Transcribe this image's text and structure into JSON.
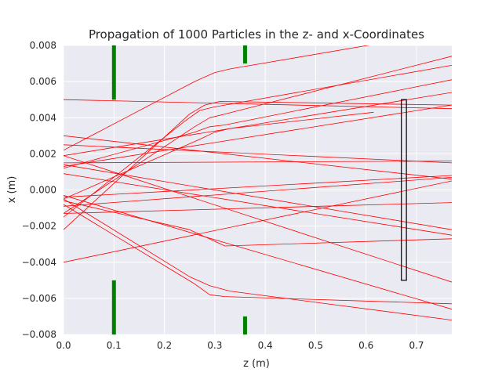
{
  "chart_data": {
    "type": "line",
    "title": "Propagation of 1000 Particles in the z- and x-Coordinates",
    "xlabel": "z (m)",
    "ylabel": "x (m)",
    "xlim": [
      0.0,
      0.77
    ],
    "ylim": [
      -0.008,
      0.008
    ],
    "xticks": [
      0.0,
      0.1,
      0.2,
      0.3,
      0.4,
      0.5,
      0.6,
      0.7
    ],
    "xtick_labels": [
      "0.0",
      "0.1",
      "0.2",
      "0.3",
      "0.4",
      "0.5",
      "0.6",
      "0.7"
    ],
    "yticks": [
      -0.008,
      -0.006,
      -0.004,
      -0.002,
      0.0,
      0.002,
      0.004,
      0.006,
      0.008
    ],
    "ytick_labels": [
      "−0.008",
      "−0.006",
      "−0.004",
      "−0.002",
      "0.000",
      "0.002",
      "0.004",
      "0.006",
      "0.008"
    ],
    "grid": true,
    "background_color": "#eaeaf2",
    "grid_color": "#ffffff",
    "trajectory_color": "#ff0000",
    "aperture_color": "#008000",
    "detector_color": "#000000",
    "apertures": [
      {
        "z": 0.1,
        "x_ranges": [
          [
            0.005,
            0.008
          ],
          [
            -0.008,
            -0.005
          ]
        ]
      },
      {
        "z": 0.36,
        "x_ranges": [
          [
            0.007,
            0.008
          ],
          [
            -0.008,
            -0.007
          ]
        ]
      }
    ],
    "detector": {
      "z_range": [
        0.67,
        0.68
      ],
      "x_range": [
        -0.005,
        0.005
      ]
    },
    "series": [
      {
        "z": [
          0.0,
          0.26,
          0.3,
          0.33,
          0.77
        ],
        "x": [
          0.0022,
          0.006,
          0.0065,
          0.0067,
          0.0088
        ]
      },
      {
        "z": [
          0.0,
          0.25,
          0.28,
          0.31,
          0.77
        ],
        "x": [
          -0.0022,
          0.0042,
          0.0047,
          0.0049,
          0.0047
        ]
      },
      {
        "z": [
          0.0,
          0.24,
          0.27,
          0.3,
          0.77
        ],
        "x": [
          -0.0015,
          0.0038,
          0.0044,
          0.0046,
          0.0069
        ]
      },
      {
        "z": [
          0.0,
          0.26,
          0.29,
          0.32,
          0.77
        ],
        "x": [
          -0.0013,
          0.0035,
          0.004,
          0.0042,
          0.0074
        ]
      },
      {
        "z": [
          0.0,
          0.27,
          0.3,
          0.33,
          0.615
        ],
        "x": [
          -0.0005,
          0.0028,
          0.0032,
          0.0034,
          0.0043
        ]
      },
      {
        "z": [
          0.0,
          0.26,
          0.29,
          0.32,
          0.77
        ],
        "x": [
          0.0012,
          0.0032,
          0.0035,
          0.0036,
          0.0061
        ]
      },
      {
        "z": [
          0.0,
          0.77
        ],
        "x": [
          0.005,
          0.0045
        ]
      },
      {
        "z": [
          0.0,
          0.77
        ],
        "x": [
          0.0013,
          0.0047
        ]
      },
      {
        "z": [
          0.0,
          0.77
        ],
        "x": [
          0.0019,
          0.0054
        ]
      },
      {
        "z": [
          0.0,
          0.77
        ],
        "x": [
          0.003,
          0.0006
        ]
      },
      {
        "z": [
          0.0,
          0.77
        ],
        "x": [
          0.0025,
          0.0015
        ]
      },
      {
        "z": [
          0.0,
          0.77
        ],
        "x": [
          0.0015,
          0.0016
        ]
      },
      {
        "z": [
          0.0,
          0.77
        ],
        "x": [
          -0.0004,
          0.0008
        ]
      },
      {
        "z": [
          0.0,
          0.77
        ],
        "x": [
          -0.0009,
          0.0007
        ]
      },
      {
        "z": [
          0.0,
          0.77
        ],
        "x": [
          -0.0013,
          -0.0007
        ]
      },
      {
        "z": [
          0.0,
          0.77
        ],
        "x": [
          0.0014,
          -0.0022
        ]
      },
      {
        "z": [
          0.0,
          0.77
        ],
        "x": [
          0.0009,
          -0.0025
        ]
      },
      {
        "z": [
          0.0,
          0.77
        ],
        "x": [
          -0.004,
          0.0005
        ]
      },
      {
        "z": [
          0.0,
          0.25,
          0.32,
          0.77
        ],
        "x": [
          -0.0006,
          -0.0022,
          -0.0031,
          -0.0027
        ]
      },
      {
        "z": [
          0.0,
          0.77
        ],
        "x": [
          0.0019,
          -0.0051
        ]
      },
      {
        "z": [
          0.0,
          0.25,
          0.29,
          0.33,
          0.77
        ],
        "x": [
          -0.0005,
          -0.0048,
          -0.0053,
          -0.0056,
          -0.0072
        ]
      },
      {
        "z": [
          0.0,
          0.26,
          0.29,
          0.32,
          0.77
        ],
        "x": [
          -0.0008,
          -0.0052,
          -0.0058,
          -0.0059,
          -0.0063
        ]
      },
      {
        "z": [
          0.0,
          0.77
        ],
        "x": [
          -0.0003,
          -0.0066
        ]
      }
    ]
  }
}
